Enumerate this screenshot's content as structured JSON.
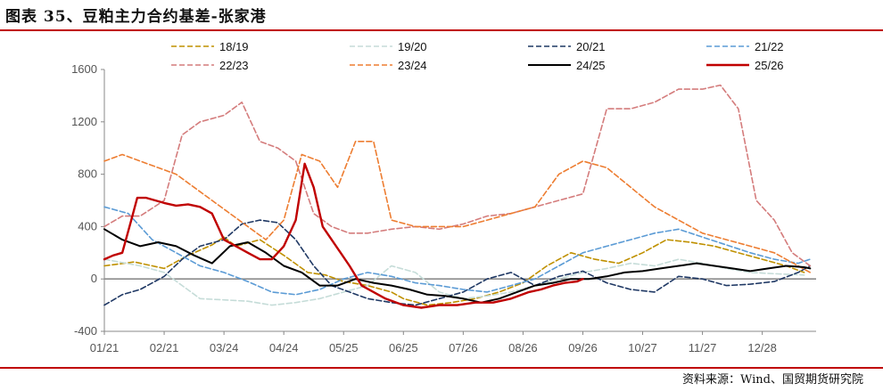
{
  "header": {
    "title": "图表 35、豆粕主力合约基差-张家港"
  },
  "footer": {
    "source": "资料来源：Wind、国贸期货研究院"
  },
  "chart_data": {
    "type": "line",
    "title": "豆粕主力合约基差-张家港",
    "xlabel": "",
    "ylabel": "",
    "ylim": [
      -400,
      1600
    ],
    "yticks": [
      -400,
      0,
      400,
      800,
      1200,
      1600
    ],
    "ytick_labels": [
      "-400",
      "0",
      "400",
      "800",
      "1200",
      "1600"
    ],
    "x_categories": [
      "01/21",
      "02/21",
      "03/24",
      "04/24",
      "05/25",
      "06/25",
      "07/26",
      "08/26",
      "09/26",
      "10/27",
      "11/27",
      "12/28"
    ],
    "xlim": [
      0,
      11.9
    ],
    "zero_line": true,
    "legend_position": "top",
    "series": [
      {
        "name": "18/19",
        "color": "#bf9000",
        "dash": "6,3",
        "width": 1.6,
        "x": [
          0.0,
          0.5,
          1.0,
          1.4,
          1.8,
          2.0,
          2.2,
          2.6,
          3.0,
          3.4,
          3.7,
          4.0,
          4.4,
          4.8,
          5.0,
          5.4,
          5.8,
          6.2,
          6.6,
          7.0,
          7.4,
          7.8,
          8.2,
          8.6,
          9.0,
          9.4,
          9.8,
          10.2,
          10.6,
          11.0,
          11.4,
          11.7
        ],
        "values": [
          100,
          130,
          80,
          180,
          260,
          320,
          250,
          300,
          180,
          50,
          30,
          -20,
          -50,
          -100,
          -150,
          -200,
          -180,
          -150,
          -100,
          -30,
          100,
          200,
          150,
          120,
          200,
          300,
          280,
          250,
          200,
          150,
          100,
          50
        ]
      },
      {
        "name": "19/20",
        "color": "#c5dcd8",
        "dash": "6,3",
        "width": 1.6,
        "x": [
          0.0,
          0.6,
          1.0,
          1.3,
          1.6,
          2.0,
          2.4,
          2.8,
          3.2,
          3.6,
          4.0,
          4.4,
          4.8,
          5.2,
          5.6,
          6.0,
          6.4,
          6.8,
          7.2,
          7.6,
          8.0,
          8.4,
          8.8,
          9.2,
          9.6,
          10.0,
          10.4,
          10.8,
          11.2,
          11.7
        ],
        "values": [
          150,
          100,
          50,
          -50,
          -150,
          -160,
          -170,
          -200,
          -180,
          -150,
          -100,
          -50,
          100,
          50,
          -100,
          -150,
          -130,
          -100,
          -50,
          0,
          50,
          80,
          120,
          100,
          150,
          120,
          80,
          50,
          40,
          30
        ]
      },
      {
        "name": "20/21",
        "color": "#1f3864",
        "dash": "6,3",
        "width": 1.6,
        "x": [
          0.0,
          0.3,
          0.6,
          1.0,
          1.3,
          1.6,
          2.0,
          2.3,
          2.6,
          2.9,
          3.2,
          3.5,
          3.8,
          4.1,
          4.4,
          4.8,
          5.2,
          5.6,
          6.0,
          6.4,
          6.8,
          7.2,
          7.6,
          8.0,
          8.4,
          8.8,
          9.2,
          9.6,
          10.0,
          10.4,
          10.8,
          11.2,
          11.6,
          11.8
        ],
        "values": [
          -200,
          -120,
          -80,
          20,
          150,
          250,
          300,
          420,
          450,
          430,
          300,
          100,
          -50,
          -100,
          -150,
          -180,
          -200,
          -150,
          -100,
          0,
          50,
          -50,
          20,
          60,
          -30,
          -80,
          -100,
          20,
          0,
          -50,
          -40,
          -20,
          50,
          100
        ]
      },
      {
        "name": "21/22",
        "color": "#5b9bd5",
        "dash": "6,3",
        "width": 1.6,
        "x": [
          0.0,
          0.4,
          0.8,
          1.2,
          1.6,
          2.0,
          2.4,
          2.8,
          3.2,
          3.6,
          4.0,
          4.4,
          4.8,
          5.2,
          5.6,
          6.0,
          6.4,
          6.8,
          7.2,
          7.6,
          8.0,
          8.4,
          8.8,
          9.2,
          9.6,
          10.0,
          10.4,
          10.8,
          11.2,
          11.6,
          11.8
        ],
        "values": [
          550,
          500,
          300,
          200,
          100,
          50,
          -20,
          -100,
          -120,
          -80,
          0,
          50,
          20,
          -30,
          -50,
          -80,
          -100,
          -50,
          0,
          100,
          200,
          250,
          300,
          350,
          380,
          320,
          260,
          200,
          150,
          120,
          150
        ]
      },
      {
        "name": "22/23",
        "color": "#d47c7c",
        "dash": "6,3",
        "width": 1.6,
        "x": [
          0.0,
          0.3,
          0.6,
          1.0,
          1.3,
          1.6,
          2.0,
          2.3,
          2.6,
          2.9,
          3.2,
          3.5,
          3.8,
          4.1,
          4.4,
          4.8,
          5.2,
          5.6,
          6.0,
          6.4,
          6.8,
          7.2,
          7.6,
          8.0,
          8.4,
          8.8,
          9.2,
          9.6,
          10.0,
          10.3,
          10.6,
          10.9,
          11.2,
          11.5,
          11.8
        ],
        "values": [
          400,
          480,
          480,
          600,
          1100,
          1200,
          1250,
          1350,
          1050,
          1000,
          900,
          500,
          400,
          350,
          350,
          380,
          400,
          380,
          420,
          480,
          500,
          550,
          600,
          650,
          1300,
          1300,
          1350,
          1450,
          1450,
          1480,
          1300,
          600,
          450,
          200,
          100
        ]
      },
      {
        "name": "23/24",
        "color": "#ed7d31",
        "dash": "6,3",
        "width": 1.6,
        "x": [
          0.0,
          0.3,
          0.6,
          0.9,
          1.2,
          1.5,
          1.8,
          2.1,
          2.4,
          2.7,
          3.0,
          3.3,
          3.6,
          3.9,
          4.2,
          4.5,
          4.8,
          5.2,
          5.6,
          6.0,
          6.4,
          6.8,
          7.2,
          7.6,
          8.0,
          8.4,
          8.8,
          9.2,
          9.6,
          10.0,
          10.4,
          10.8,
          11.2,
          11.6,
          11.8
        ],
        "values": [
          900,
          950,
          900,
          850,
          800,
          700,
          600,
          500,
          400,
          300,
          450,
          950,
          900,
          700,
          1050,
          1050,
          450,
          400,
          400,
          400,
          450,
          500,
          550,
          800,
          900,
          850,
          700,
          550,
          450,
          350,
          300,
          250,
          200,
          100,
          50
        ]
      },
      {
        "name": "24/25",
        "color": "#000000",
        "dash": "",
        "width": 2.0,
        "x": [
          0.0,
          0.3,
          0.6,
          0.9,
          1.2,
          1.5,
          1.8,
          2.1,
          2.4,
          2.7,
          3.0,
          3.3,
          3.6,
          3.9,
          4.2,
          4.5,
          4.8,
          5.1,
          5.4,
          5.7,
          6.0,
          6.3,
          6.6,
          6.9,
          7.2,
          7.5,
          7.8,
          8.1,
          8.4,
          8.7,
          9.0,
          9.3,
          9.6,
          9.9,
          10.2,
          10.5,
          10.8,
          11.1,
          11.4,
          11.7,
          11.8
        ],
        "values": [
          380,
          300,
          250,
          280,
          250,
          180,
          120,
          250,
          280,
          200,
          100,
          50,
          -50,
          -50,
          0,
          -30,
          -50,
          -80,
          -120,
          -130,
          -150,
          -180,
          -150,
          -100,
          -50,
          -30,
          0,
          0,
          20,
          50,
          60,
          80,
          100,
          120,
          100,
          80,
          60,
          80,
          100,
          90,
          80
        ]
      },
      {
        "name": "25/26",
        "color": "#c00000",
        "dash": "",
        "width": 2.4,
        "x": [
          0.0,
          0.15,
          0.3,
          0.45,
          0.55,
          0.7,
          0.85,
          1.0,
          1.2,
          1.4,
          1.6,
          1.8,
          2.0,
          2.2,
          2.4,
          2.6,
          2.8,
          3.0,
          3.1,
          3.2,
          3.35,
          3.5,
          3.65,
          3.8,
          3.95,
          4.1,
          4.3,
          4.5,
          4.7,
          5.0,
          5.3,
          5.6,
          5.9,
          6.2,
          6.5,
          6.8,
          7.1,
          7.3,
          7.5,
          7.7,
          7.9,
          8.0
        ],
        "values": [
          150,
          180,
          200,
          450,
          620,
          620,
          600,
          580,
          560,
          570,
          550,
          500,
          300,
          250,
          200,
          150,
          150,
          250,
          350,
          450,
          880,
          700,
          400,
          300,
          200,
          100,
          -50,
          -100,
          -150,
          -200,
          -220,
          -200,
          -200,
          -180,
          -180,
          -150,
          -100,
          -80,
          -50,
          -30,
          -20,
          0
        ]
      }
    ]
  }
}
